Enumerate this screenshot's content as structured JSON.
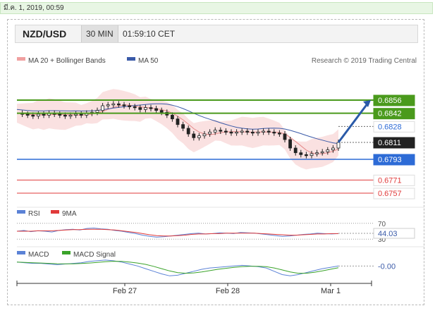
{
  "date_bar": "มี.ค. 1, 2019, 00:59",
  "header": {
    "pair": "NZD/USD",
    "timeframe": "30 MIN",
    "time": "01:59:10 CET"
  },
  "colors": {
    "green": "#4a9a1c",
    "blue": "#2d6bd6",
    "red": "#e03a3a",
    "dark": "#222222",
    "band": "#f6c4c4",
    "ma50": "#3a5aa8"
  },
  "chart_data": [
    {
      "type": "candlestick",
      "title": "NZD/USD",
      "legend": [
        "MA 20 + Bollinger Bands",
        "MA 50"
      ],
      "credit": "Research © 2019 Trading Central",
      "x_ticks": [
        "Feb 27",
        "Feb 28",
        "Mar 1"
      ],
      "price_series": [
        0.6842,
        0.6841,
        0.684,
        0.6839,
        0.6841,
        0.684,
        0.6842,
        0.6841,
        0.684,
        0.6839,
        0.684,
        0.6841,
        0.684,
        0.6842,
        0.6843,
        0.6845,
        0.685,
        0.6851,
        0.6852,
        0.6851,
        0.685,
        0.6849,
        0.6848,
        0.6846,
        0.6848,
        0.6847,
        0.6845,
        0.6843,
        0.684,
        0.6836,
        0.683,
        0.6826,
        0.682,
        0.6816,
        0.6818,
        0.682,
        0.6822,
        0.6824,
        0.6823,
        0.6822,
        0.6821,
        0.6822,
        0.6823,
        0.6822,
        0.6821,
        0.6822,
        0.6823,
        0.6822,
        0.6821,
        0.682,
        0.6814,
        0.6805,
        0.68,
        0.6798,
        0.6797,
        0.6799,
        0.68,
        0.6801,
        0.6803,
        0.6805,
        0.6811
      ],
      "levels": [
        {
          "value": 0.6856,
          "label": "0.6856",
          "color": "#4a9a1c",
          "kind": "resistance"
        },
        {
          "value": 0.6842,
          "label": "0.6842",
          "color": "#4a9a1c",
          "kind": "resistance"
        },
        {
          "value": 0.6828,
          "label": "0.6828",
          "color": "#2d6bd6",
          "kind": "ma50"
        },
        {
          "value": 0.6811,
          "label": "0.6811",
          "color": "#222222",
          "kind": "last"
        },
        {
          "value": 0.6793,
          "label": "0.6793",
          "color": "#2d6bd6",
          "kind": "support"
        },
        {
          "value": 0.6771,
          "label": "0.6771",
          "color": "#e03a3a",
          "kind": "support"
        },
        {
          "value": 0.6757,
          "label": "0.6757",
          "color": "#e03a3a",
          "kind": "support"
        }
      ],
      "ylim": [
        0.6748,
        0.688
      ]
    },
    {
      "type": "line",
      "title": "",
      "legend": [
        "RSI",
        "9MA"
      ],
      "levels": [
        "70",
        "30"
      ],
      "last_value": "44.03",
      "rsi": [
        50,
        52,
        49,
        51,
        50,
        48,
        52,
        54,
        55,
        53,
        57,
        58,
        56,
        55,
        52,
        50,
        47,
        44,
        40,
        37,
        35,
        36,
        38,
        40,
        42,
        44,
        45,
        43,
        44,
        46,
        45,
        44,
        47,
        46,
        45,
        43,
        41,
        39,
        37,
        38,
        40,
        42,
        43,
        45,
        44,
        43,
        44
      ],
      "ma9": [
        50,
        50,
        50,
        51,
        51,
        51,
        52,
        53,
        54,
        54,
        55,
        55,
        55,
        54,
        53,
        51,
        49,
        47,
        44,
        41,
        39,
        38,
        38,
        39,
        40,
        42,
        43,
        43,
        44,
        44,
        45,
        45,
        45,
        45,
        45,
        44,
        43,
        42,
        41,
        40,
        40,
        41,
        42,
        43,
        43,
        44,
        44
      ]
    },
    {
      "type": "line",
      "title": "",
      "legend": [
        "MACD",
        "MACD Signal"
      ],
      "last_value": "-0.00",
      "macd": [
        0.6,
        0.5,
        0.4,
        0.4,
        0.3,
        0.2,
        0.3,
        0.4,
        0.5,
        0.7,
        0.8,
        0.9,
        0.8,
        0.6,
        0.3,
        0.0,
        -0.4,
        -0.8,
        -1.2,
        -1.5,
        -1.4,
        -1.1,
        -0.8,
        -0.5,
        -0.3,
        -0.2,
        -0.1,
        0.0,
        0.1,
        0.0,
        -0.1,
        -0.3,
        -0.8,
        -1.3,
        -1.5,
        -1.3,
        -1.0,
        -0.7,
        -0.4,
        -0.2,
        0.0
      ],
      "signal": [
        0.6,
        0.55,
        0.5,
        0.45,
        0.4,
        0.35,
        0.33,
        0.34,
        0.38,
        0.45,
        0.55,
        0.65,
        0.72,
        0.7,
        0.6,
        0.45,
        0.25,
        -0.05,
        -0.4,
        -0.75,
        -1.0,
        -1.1,
        -1.05,
        -0.9,
        -0.7,
        -0.5,
        -0.35,
        -0.2,
        -0.1,
        -0.05,
        -0.05,
        -0.1,
        -0.3,
        -0.6,
        -0.9,
        -1.1,
        -1.1,
        -0.95,
        -0.75,
        -0.5,
        -0.25
      ]
    }
  ]
}
